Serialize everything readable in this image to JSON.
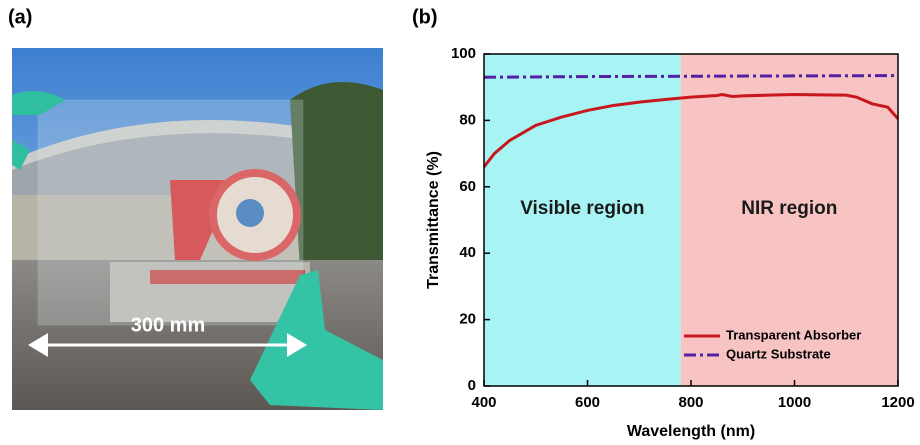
{
  "panel_a": {
    "label": "(a)",
    "annotation": "300 mm"
  },
  "chart_data": {
    "type": "line",
    "panel_label": "(b)",
    "xlabel": "Wavelength (nm)",
    "ylabel": "Transmittance (%)",
    "xlim": [
      400,
      1200
    ],
    "xticks": [
      400,
      600,
      800,
      1000,
      1200
    ],
    "ylim": [
      0,
      100
    ],
    "yticks": [
      0,
      20,
      40,
      60,
      80,
      100
    ],
    "grid": false,
    "legend": "lower right",
    "regions": [
      {
        "label": "Visible region",
        "start": 400,
        "end": 780,
        "color": "#a8f4f4"
      },
      {
        "label": "NIR region",
        "start": 780,
        "end": 1200,
        "color": "#f7c3c3"
      }
    ],
    "series": [
      {
        "name": "Transparent Absorber",
        "color": "#c8171e",
        "style": "solid",
        "x": [
          400,
          420,
          450,
          500,
          550,
          600,
          650,
          700,
          750,
          800,
          850,
          860,
          880,
          900,
          950,
          1000,
          1050,
          1100,
          1120,
          1150,
          1180,
          1200
        ],
        "values": [
          66,
          70,
          74,
          78.5,
          81,
          83,
          84.5,
          85.5,
          86.3,
          87,
          87.5,
          87.8,
          87.2,
          87.4,
          87.6,
          87.8,
          87.7,
          87.6,
          87,
          85,
          84,
          80.5
        ]
      },
      {
        "name": "Quartz Substrate",
        "color": "#5420a6",
        "style": "dashdot",
        "x": [
          400,
          600,
          800,
          1000,
          1200
        ],
        "values": [
          93,
          93.2,
          93.3,
          93.4,
          93.5
        ]
      }
    ]
  }
}
